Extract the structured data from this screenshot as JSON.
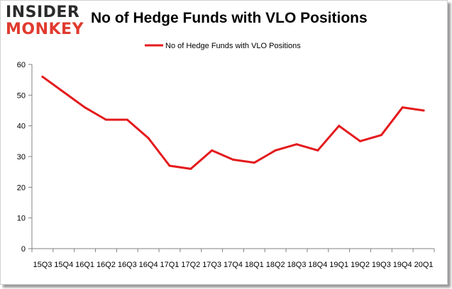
{
  "logo": {
    "line1": "INSIDER",
    "line2": "MONKEY"
  },
  "colors": {
    "series": "#e41a1c",
    "logo_accent": "#e03a2f"
  },
  "chart_data": {
    "type": "line",
    "title": "No of Hedge Funds with VLO Positions",
    "legend_position": "top-center",
    "grid": false,
    "ylim": [
      0,
      60
    ],
    "yticks": [
      0,
      10,
      20,
      30,
      40,
      50,
      60
    ],
    "categories": [
      "15Q3",
      "15Q4",
      "16Q1",
      "16Q2",
      "16Q3",
      "16Q4",
      "17Q1",
      "17Q2",
      "17Q3",
      "17Q4",
      "18Q1",
      "18Q2",
      "18Q3",
      "18Q4",
      "19Q1",
      "19Q2",
      "19Q3",
      "19Q4",
      "20Q1"
    ],
    "series": [
      {
        "name": "No of Hedge Funds with VLO Positions",
        "values": [
          56,
          51,
          46,
          42,
          42,
          36,
          27,
          26,
          32,
          29,
          28,
          32,
          34,
          32,
          40,
          35,
          37,
          46,
          45
        ]
      }
    ]
  }
}
